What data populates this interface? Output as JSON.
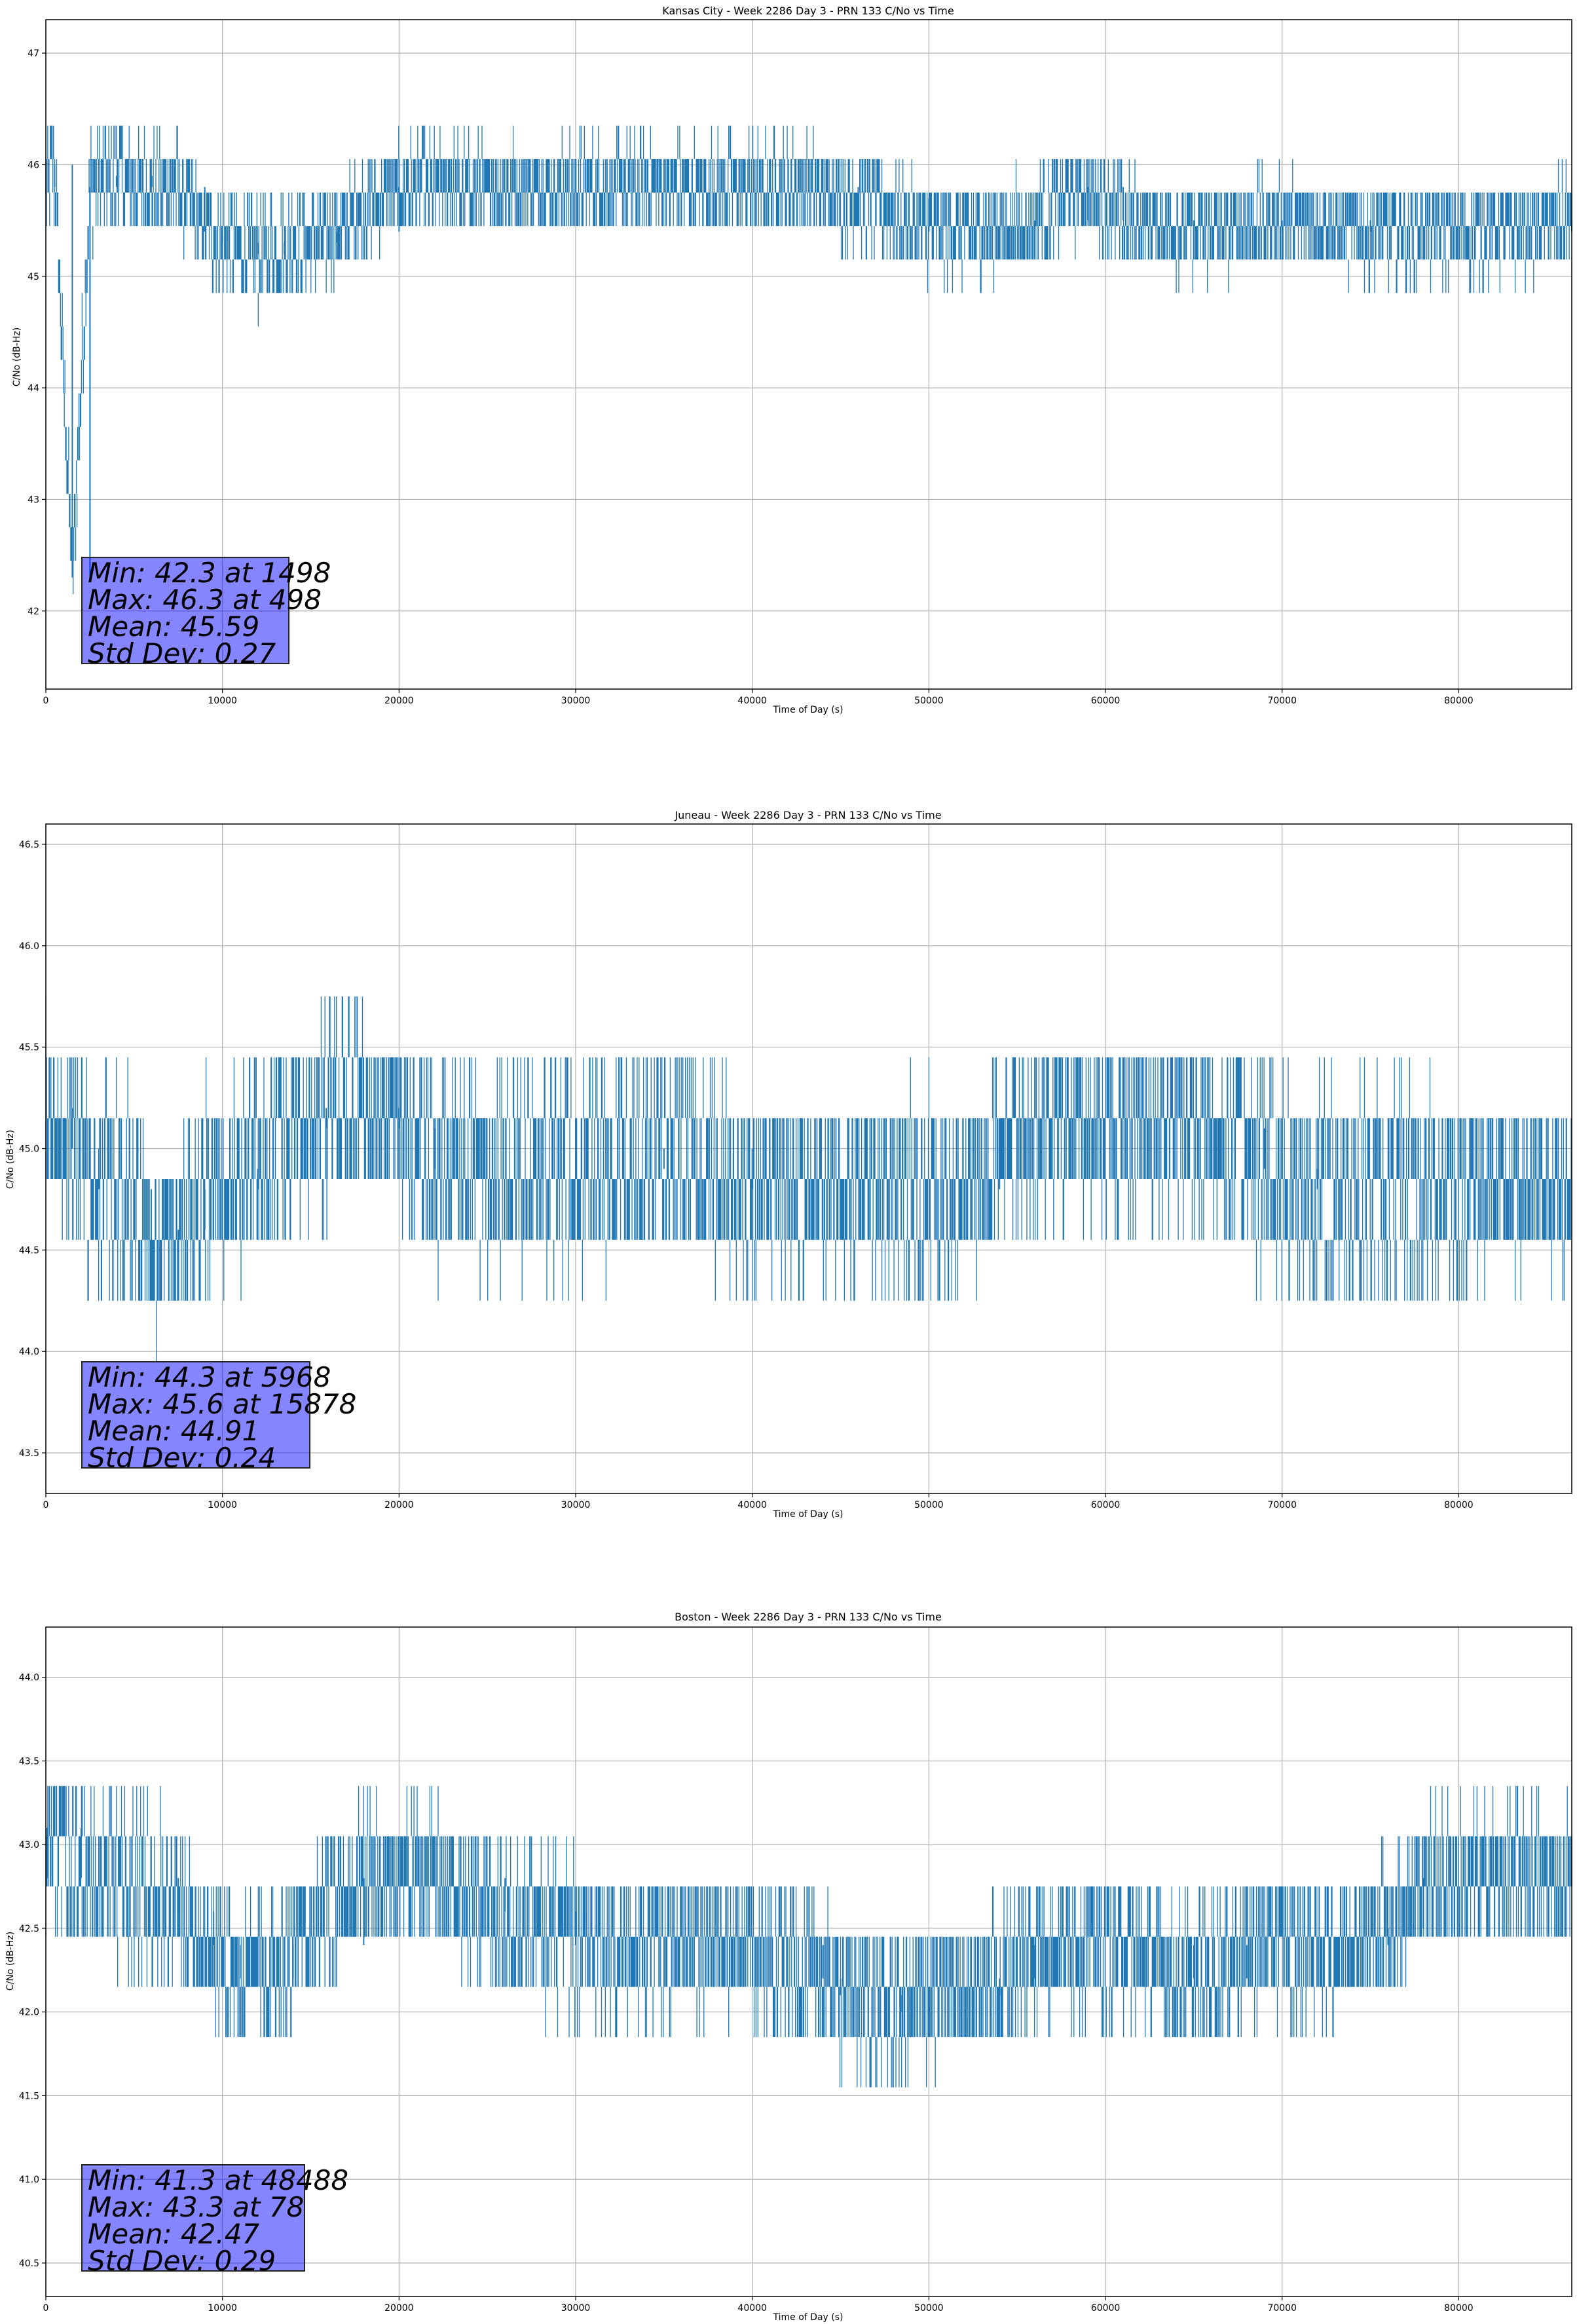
{
  "charts": [
    {
      "title": "Kansas City - Week 2286 Day 3 - PRN 133 C/No vs Time",
      "xlabel": "Time of Day (s)",
      "ylabel": "C/No (dB-Hz)",
      "stats": [
        "Min: 42.3 at 1498",
        "Max: 46.3 at 498",
        "Mean: 45.59",
        "Std Dev: 0.27"
      ]
    },
    {
      "title": "Juneau - Week 2286 Day 3 - PRN 133 C/No vs Time",
      "xlabel": "Time of Day (s)",
      "ylabel": "C/No (dB-Hz)",
      "stats": [
        "Min: 44.3 at 5968",
        "Max: 45.6 at 15878",
        "Mean: 44.91",
        "Std Dev: 0.24"
      ]
    },
    {
      "title": "Boston - Week 2286 Day 3 - PRN 133 C/No vs Time",
      "xlabel": "Time of Day (s)",
      "ylabel": "C/No (dB-Hz)",
      "stats": [
        "Min: 41.3 at 48488",
        "Max: 43.3 at 78",
        "Mean: 42.47",
        "Std Dev: 0.29"
      ]
    }
  ],
  "chart_data": [
    {
      "type": "line",
      "title": "Kansas City - Week 2286 Day 3 - PRN 133 C/No vs Time",
      "xlabel": "Time of Day (s)",
      "ylabel": "C/No (dB-Hz)",
      "xlim": [
        0,
        86400
      ],
      "ylim": [
        41.3,
        47.3
      ],
      "xticks": [
        0,
        10000,
        20000,
        30000,
        40000,
        50000,
        60000,
        70000,
        80000
      ],
      "yticks": [
        42,
        43,
        44,
        45,
        46,
        47
      ],
      "grid": true,
      "line_color": "#1f77b4",
      "quantization_step": 0.3,
      "series": [
        {
          "x": [
            0,
            500,
            1498,
            2500,
            4000,
            6000,
            7500,
            9000,
            10000,
            12000,
            13500,
            15000,
            16500,
            20000,
            25000,
            30000,
            35000,
            40000,
            43000,
            46000,
            50000,
            53000,
            56000,
            59000,
            61000,
            65000,
            70000,
            75000,
            80000,
            83000,
            86400
          ],
          "y": [
            45.8,
            46.0,
            42.3,
            45.8,
            45.9,
            45.8,
            45.8,
            45.4,
            45.3,
            45.2,
            45.3,
            45.3,
            45.4,
            45.8,
            45.8,
            45.8,
            45.8,
            45.8,
            45.8,
            45.7,
            45.4,
            45.4,
            45.5,
            45.8,
            45.5,
            45.4,
            45.5,
            45.4,
            45.4,
            45.4,
            45.5
          ],
          "spread": [
            0.3,
            0.4,
            0.3,
            0.4,
            0.4,
            0.3,
            0.3,
            0.3,
            0.3,
            0.4,
            0.3,
            0.3,
            0.3,
            0.3,
            0.3,
            0.3,
            0.3,
            0.3,
            0.3,
            0.3,
            0.3,
            0.3,
            0.3,
            0.3,
            0.3,
            0.3,
            0.3,
            0.3,
            0.3,
            0.3,
            0.3
          ]
        }
      ]
    },
    {
      "type": "line",
      "title": "Juneau - Week 2286 Day 3 - PRN 133 C/No vs Time",
      "xlabel": "Time of Day (s)",
      "ylabel": "C/No (dB-Hz)",
      "xlim": [
        0,
        86400
      ],
      "ylim": [
        43.3,
        46.6
      ],
      "xticks": [
        0,
        10000,
        20000,
        30000,
        40000,
        50000,
        60000,
        70000,
        80000
      ],
      "yticks": [
        43.5,
        44.0,
        44.5,
        45.0,
        45.5,
        46.0,
        46.5
      ],
      "grid": true,
      "line_color": "#1f77b4",
      "quantization_step": 0.3,
      "series": [
        {
          "x": [
            0,
            1500,
            3000,
            5000,
            5968,
            7500,
            9000,
            10000,
            12000,
            15000,
            15878,
            18000,
            20000,
            22000,
            25000,
            30000,
            35000,
            40000,
            45000,
            50000,
            53000,
            54000,
            58000,
            62000,
            65000,
            69000,
            72000,
            75000,
            78000,
            82000,
            86400
          ],
          "y": [
            45.2,
            45.0,
            44.8,
            44.8,
            44.5,
            44.6,
            44.8,
            44.8,
            44.9,
            45.1,
            45.2,
            45.2,
            45.1,
            44.9,
            44.9,
            44.9,
            45.0,
            44.8,
            44.8,
            44.8,
            44.8,
            45.1,
            45.1,
            45.1,
            45.1,
            44.9,
            44.8,
            44.8,
            44.8,
            44.8,
            44.8
          ],
          "spread": [
            0.3,
            0.3,
            0.4,
            0.4,
            0.3,
            0.3,
            0.4,
            0.3,
            0.4,
            0.3,
            0.4,
            0.3,
            0.3,
            0.4,
            0.4,
            0.4,
            0.4,
            0.3,
            0.3,
            0.4,
            0.3,
            0.3,
            0.3,
            0.3,
            0.3,
            0.4,
            0.4,
            0.4,
            0.4,
            0.3,
            0.3
          ]
        }
      ]
    },
    {
      "type": "line",
      "title": "Boston - Week 2286 Day 3 - PRN 133 C/No vs Time",
      "xlabel": "Time of Day (s)",
      "ylabel": "C/No (dB-Hz)",
      "xlim": [
        0,
        86400
      ],
      "ylim": [
        40.3,
        44.3
      ],
      "xticks": [
        0,
        10000,
        20000,
        30000,
        40000,
        50000,
        60000,
        70000,
        80000
      ],
      "yticks": [
        40.5,
        41.0,
        41.5,
        42.0,
        42.5,
        43.0,
        43.5,
        44.0
      ],
      "grid": true,
      "line_color": "#1f77b4",
      "quantization_step": 0.3,
      "series": [
        {
          "x": [
            0,
            78,
            2000,
            5000,
            7500,
            9500,
            11000,
            14000,
            18000,
            22000,
            26000,
            30000,
            35000,
            40000,
            44000,
            45000,
            48488,
            50000,
            54000,
            56000,
            58000,
            61000,
            65000,
            68000,
            72000,
            76000,
            78000,
            80000,
            83000,
            86400
          ],
          "y": [
            42.8,
            43.1,
            42.8,
            42.8,
            42.6,
            42.4,
            42.2,
            42.4,
            42.8,
            42.8,
            42.6,
            42.4,
            42.4,
            42.4,
            42.2,
            42.1,
            42.0,
            42.1,
            42.2,
            42.4,
            42.4,
            42.4,
            42.2,
            42.4,
            42.4,
            42.5,
            42.8,
            42.8,
            42.8,
            42.8
          ],
          "spread": [
            0.4,
            0.3,
            0.4,
            0.4,
            0.4,
            0.3,
            0.3,
            0.3,
            0.3,
            0.3,
            0.3,
            0.4,
            0.3,
            0.3,
            0.3,
            0.3,
            0.3,
            0.3,
            0.3,
            0.3,
            0.3,
            0.3,
            0.3,
            0.3,
            0.3,
            0.3,
            0.3,
            0.3,
            0.3,
            0.3
          ]
        }
      ]
    }
  ]
}
